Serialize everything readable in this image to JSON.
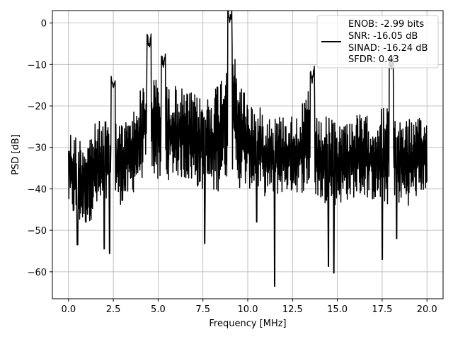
{
  "chart_data": {
    "type": "line",
    "title": "",
    "xlabel": "Frequency [MHz]",
    "ylabel": "PSD [dB]",
    "xlim": [
      -0.9,
      20.9
    ],
    "ylim": [
      -66.5,
      3.0
    ],
    "xticks": [
      0.0,
      2.5,
      5.0,
      7.5,
      10.0,
      12.5,
      15.0,
      17.5,
      20.0
    ],
    "xtick_labels": [
      "0.0",
      "2.5",
      "5.0",
      "7.5",
      "10.0",
      "12.5",
      "15.0",
      "17.5",
      "20.0"
    ],
    "yticks": [
      0,
      -10,
      -20,
      -30,
      -40,
      -50,
      -60
    ],
    "ytick_labels": [
      "0",
      "−10",
      "−20",
      "−30",
      "−40",
      "−50",
      "−60"
    ],
    "grid": true,
    "legend_placement": "upper-right",
    "legend": {
      "lines": [
        "ENOB: -2.99 bits",
        "SNR: -16.05 dB",
        "SINAD: -16.24 dB",
        "SFDR: 0.43"
      ],
      "swatch_color": "#000000"
    },
    "line_color": "#000000",
    "noise_envelope": {
      "x_mhz": [
        0.0,
        0.5,
        1.0,
        1.5,
        2.0,
        2.5,
        3.0,
        3.5,
        4.0,
        4.5,
        5.0,
        5.5,
        6.0,
        6.5,
        7.0,
        7.5,
        8.0,
        8.5,
        9.0,
        9.5,
        10.0,
        10.5,
        11.0,
        11.5,
        12.0,
        12.5,
        13.0,
        13.5,
        14.0,
        14.5,
        15.0,
        15.5,
        16.0,
        16.5,
        17.0,
        17.5,
        18.0,
        18.5,
        19.0,
        19.5,
        20.0
      ],
      "upper_db": [
        -25,
        -27,
        -27,
        -24,
        -23,
        -23,
        -24,
        -22,
        -16,
        -10,
        -14,
        -15,
        -15,
        -16,
        -17,
        -18,
        -16,
        -12,
        -2,
        -12,
        -18,
        -20,
        -21,
        -22,
        -22,
        -22,
        -20,
        -15,
        -24,
        -22,
        -24,
        -23,
        -22,
        -22,
        -23,
        -20,
        -19,
        -22,
        -23,
        -23,
        -23
      ],
      "lower_db": [
        -45,
        -49,
        -49,
        -46,
        -45,
        -43,
        -44,
        -42,
        -38,
        -36,
        -38,
        -38,
        -37,
        -38,
        -39,
        -41,
        -42,
        -40,
        -36,
        -40,
        -40,
        -40,
        -42,
        -42,
        -41,
        -41,
        -41,
        -40,
        -43,
        -44,
        -44,
        -43,
        -42,
        -42,
        -43,
        -44,
        -44,
        -44,
        -44,
        -42,
        -40
      ]
    },
    "peaks": [
      {
        "x": 4.5,
        "y": -6.8
      },
      {
        "x": 9.0,
        "y": -0.3
      },
      {
        "x": 13.6,
        "y": -15.0
      },
      {
        "x": 18.0,
        "y": -12.0
      },
      {
        "x": 2.5,
        "y": -17.0
      },
      {
        "x": 5.3,
        "y": -11.5
      }
    ],
    "dips": [
      {
        "x": 0.5,
        "y": -53.5
      },
      {
        "x": 2.0,
        "y": -54.5
      },
      {
        "x": 2.3,
        "y": -55.6
      },
      {
        "x": 7.6,
        "y": -53.2
      },
      {
        "x": 11.5,
        "y": -63.5
      },
      {
        "x": 14.5,
        "y": -58.7
      },
      {
        "x": 14.8,
        "y": -60.3
      },
      {
        "x": 17.5,
        "y": -57.0
      },
      {
        "x": 10.5,
        "y": -48.0
      },
      {
        "x": 18.3,
        "y": -52.0
      }
    ],
    "sample_count": 1000
  }
}
